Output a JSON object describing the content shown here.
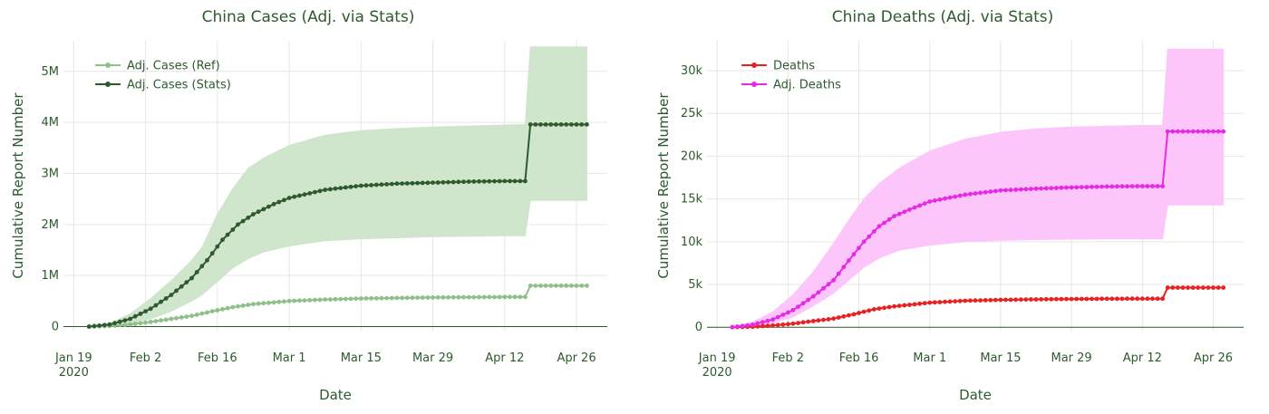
{
  "colors": {
    "text": "#2d5a2d",
    "cases_ref": "#8fbf8a",
    "cases_stats": "#2f5a2f",
    "cases_band": "#cfe6cc",
    "deaths": "#e82222",
    "adj_deaths": "#e52be5",
    "deaths_band": "#fcc6fb"
  },
  "chart_data": [
    {
      "type": "line",
      "title": "China Cases (Adj. via Stats)",
      "xlabel": "Date",
      "ylabel": "Cumulative Report Number",
      "x_ticks": [
        {
          "date": "2020-01-19",
          "label": "Jan 19",
          "label2": "2020"
        },
        {
          "date": "2020-02-02",
          "label": "Feb 2"
        },
        {
          "date": "2020-02-16",
          "label": "Feb 16"
        },
        {
          "date": "2020-03-01",
          "label": "Mar 1"
        },
        {
          "date": "2020-03-15",
          "label": "Mar 15"
        },
        {
          "date": "2020-03-29",
          "label": "Mar 29"
        },
        {
          "date": "2020-04-12",
          "label": "Apr 12"
        },
        {
          "date": "2020-04-26",
          "label": "Apr 26"
        }
      ],
      "y_ticks": [
        {
          "value": 0,
          "label": "0"
        },
        {
          "value": 1000000,
          "label": "1M"
        },
        {
          "value": 2000000,
          "label": "2M"
        },
        {
          "value": 3000000,
          "label": "3M"
        },
        {
          "value": 4000000,
          "label": "4M"
        },
        {
          "value": 5000000,
          "label": "5M"
        }
      ],
      "xlim": [
        "2020-01-17",
        "2020-05-02"
      ],
      "ylim": [
        -80000,
        5600000
      ],
      "grid": true,
      "legend_position": "top-left",
      "band": {
        "x": [
          "2020-01-22",
          "2020-01-26",
          "2020-01-30",
          "2020-02-03",
          "2020-02-07",
          "2020-02-11",
          "2020-02-13",
          "2020-02-16",
          "2020-02-19",
          "2020-02-22",
          "2020-02-25",
          "2020-03-01",
          "2020-03-08",
          "2020-03-15",
          "2020-03-22",
          "2020-03-29",
          "2020-04-05",
          "2020-04-12",
          "2020-04-16",
          "2020-04-17",
          "2020-04-20",
          "2020-04-24",
          "2020-04-28"
        ],
        "upper": [
          0,
          60000,
          250000,
          550000,
          900000,
          1300000,
          1550000,
          2200000,
          2700000,
          3100000,
          3300000,
          3550000,
          3750000,
          3840000,
          3880000,
          3910000,
          3930000,
          3950000,
          3960000,
          5480000,
          5480000,
          5480000,
          5480000
        ],
        "lower": [
          0,
          20000,
          60000,
          150000,
          300000,
          500000,
          620000,
          880000,
          1150000,
          1330000,
          1460000,
          1580000,
          1680000,
          1720000,
          1740000,
          1760000,
          1770000,
          1780000,
          1780000,
          2470000,
          2470000,
          2470000,
          2470000
        ]
      },
      "series": [
        {
          "name": "Adj. Cases (Ref)",
          "key": "cases_ref",
          "x": [
            "2020-01-22",
            "2020-01-26",
            "2020-01-30",
            "2020-02-03",
            "2020-02-07",
            "2020-02-11",
            "2020-02-15",
            "2020-02-19",
            "2020-02-23",
            "2020-03-01",
            "2020-03-08",
            "2020-03-15",
            "2020-03-22",
            "2020-03-29",
            "2020-04-05",
            "2020-04-12",
            "2020-04-16",
            "2020-04-17",
            "2020-04-22",
            "2020-04-28"
          ],
          "y": [
            0,
            10000,
            40000,
            90000,
            150000,
            210000,
            300000,
            380000,
            440000,
            500000,
            530000,
            550000,
            560000,
            570000,
            575000,
            580000,
            580000,
            800000,
            800000,
            800000
          ]
        },
        {
          "name": "Adj. Cases (Stats)",
          "key": "cases_stats",
          "x": [
            "2020-01-22",
            "2020-01-26",
            "2020-01-30",
            "2020-02-03",
            "2020-02-07",
            "2020-02-11",
            "2020-02-14",
            "2020-02-17",
            "2020-02-20",
            "2020-02-23",
            "2020-02-27",
            "2020-03-01",
            "2020-03-08",
            "2020-03-15",
            "2020-03-22",
            "2020-03-29",
            "2020-04-05",
            "2020-04-12",
            "2020-04-16",
            "2020-04-17",
            "2020-04-22",
            "2020-04-28"
          ],
          "y": [
            0,
            40000,
            150000,
            350000,
            620000,
            950000,
            1300000,
            1700000,
            2000000,
            2200000,
            2400000,
            2520000,
            2680000,
            2760000,
            2800000,
            2820000,
            2840000,
            2850000,
            2850000,
            3960000,
            3960000,
            3960000
          ]
        }
      ]
    },
    {
      "type": "line",
      "title": "China Deaths (Adj. via Stats)",
      "xlabel": "Date",
      "ylabel": "Cumulative Report Number",
      "x_ticks": [
        {
          "date": "2020-01-19",
          "label": "Jan 19",
          "label2": "2020"
        },
        {
          "date": "2020-02-02",
          "label": "Feb 2"
        },
        {
          "date": "2020-02-16",
          "label": "Feb 16"
        },
        {
          "date": "2020-03-01",
          "label": "Mar 1"
        },
        {
          "date": "2020-03-15",
          "label": "Mar 15"
        },
        {
          "date": "2020-03-29",
          "label": "Mar 29"
        },
        {
          "date": "2020-04-12",
          "label": "Apr 12"
        },
        {
          "date": "2020-04-26",
          "label": "Apr 26"
        }
      ],
      "y_ticks": [
        {
          "value": 0,
          "label": "0"
        },
        {
          "value": 5000,
          "label": "5k"
        },
        {
          "value": 10000,
          "label": "10k"
        },
        {
          "value": 15000,
          "label": "15k"
        },
        {
          "value": 20000,
          "label": "20k"
        },
        {
          "value": 25000,
          "label": "25k"
        },
        {
          "value": 30000,
          "label": "30k"
        }
      ],
      "xlim": [
        "2020-01-17",
        "2020-05-02"
      ],
      "ylim": [
        -400,
        33500
      ],
      "grid": true,
      "legend_position": "top-left",
      "band": {
        "x": [
          "2020-01-22",
          "2020-01-26",
          "2020-01-30",
          "2020-02-03",
          "2020-02-07",
          "2020-02-11",
          "2020-02-14",
          "2020-02-17",
          "2020-02-20",
          "2020-02-24",
          "2020-03-01",
          "2020-03-08",
          "2020-03-15",
          "2020-03-22",
          "2020-03-29",
          "2020-04-05",
          "2020-04-12",
          "2020-04-16",
          "2020-04-17",
          "2020-04-21",
          "2020-04-28"
        ],
        "upper": [
          0,
          600,
          1800,
          3800,
          6500,
          9800,
          12500,
          15000,
          16800,
          18600,
          20600,
          22000,
          22800,
          23200,
          23400,
          23500,
          23600,
          23600,
          32500,
          32500,
          32500
        ],
        "lower": [
          0,
          100,
          500,
          1200,
          2500,
          4000,
          5500,
          7000,
          8100,
          9000,
          9600,
          10000,
          10150,
          10250,
          10300,
          10320,
          10330,
          10330,
          14300,
          14300,
          14300
        ]
      },
      "series": [
        {
          "name": "Deaths",
          "key": "deaths",
          "x": [
            "2020-01-22",
            "2020-01-26",
            "2020-01-30",
            "2020-02-03",
            "2020-02-07",
            "2020-02-11",
            "2020-02-15",
            "2020-02-19",
            "2020-02-23",
            "2020-03-01",
            "2020-03-08",
            "2020-03-15",
            "2020-03-22",
            "2020-03-29",
            "2020-04-05",
            "2020-04-12",
            "2020-04-16",
            "2020-04-17",
            "2020-04-22",
            "2020-04-28"
          ],
          "y": [
            0,
            60,
            200,
            420,
            720,
            1010,
            1520,
            2100,
            2440,
            2870,
            3100,
            3200,
            3260,
            3300,
            3330,
            3340,
            3342,
            4630,
            4632,
            4633
          ]
        },
        {
          "name": "Adj. Deaths",
          "key": "adj_deaths",
          "x": [
            "2020-01-22",
            "2020-01-26",
            "2020-01-30",
            "2020-02-03",
            "2020-02-07",
            "2020-02-11",
            "2020-02-14",
            "2020-02-17",
            "2020-02-20",
            "2020-02-23",
            "2020-02-27",
            "2020-03-01",
            "2020-03-08",
            "2020-03-15",
            "2020-03-22",
            "2020-03-29",
            "2020-04-05",
            "2020-04-12",
            "2020-04-16",
            "2020-04-17",
            "2020-04-22",
            "2020-04-28"
          ],
          "y": [
            0,
            300,
            900,
            2000,
            3600,
            5500,
            7800,
            10000,
            11800,
            13000,
            14000,
            14700,
            15500,
            16000,
            16200,
            16350,
            16450,
            16500,
            16500,
            22900,
            22900,
            22900
          ]
        }
      ]
    }
  ]
}
